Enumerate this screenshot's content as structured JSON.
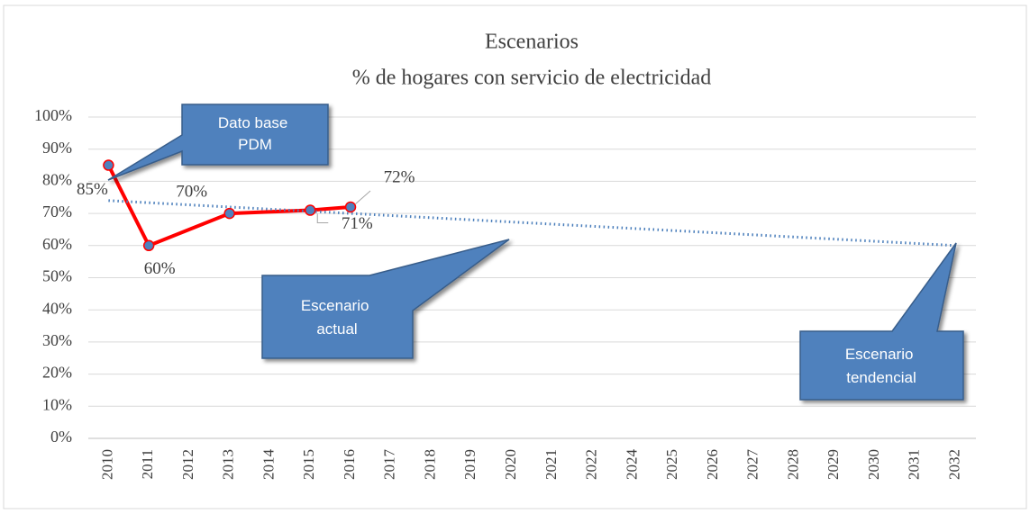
{
  "chart_data": {
    "type": "line",
    "title": "Escenarios",
    "subtitle": "% de hogares con servicio de electricidad",
    "categories": [
      "2010",
      "2011",
      "2012",
      "2013",
      "2014",
      "2015",
      "2016",
      "2017",
      "2018",
      "2019",
      "2020",
      "2021",
      "2022",
      "2024",
      "2025",
      "2026",
      "2027",
      "2028",
      "2029",
      "2030",
      "2031",
      "2032"
    ],
    "series": [
      {
        "color": "#ff0000",
        "marker_color": "#4f81bd",
        "style": "solid",
        "values": [
          85,
          60,
          null,
          70,
          null,
          71,
          72,
          null,
          null,
          null,
          null,
          null,
          null,
          null,
          null,
          null,
          null,
          null,
          null,
          null,
          null,
          null
        ],
        "value_labels": [
          "85%",
          "60%",
          null,
          "70%",
          null,
          "71%",
          "72%",
          null,
          null,
          null,
          null,
          null,
          null,
          null,
          null,
          null,
          null,
          null,
          null,
          null,
          null,
          null
        ]
      },
      {
        "color": "#4a7ebb",
        "style": "dotted",
        "values": [
          74,
          null,
          null,
          null,
          null,
          null,
          null,
          null,
          null,
          null,
          null,
          null,
          null,
          null,
          null,
          null,
          null,
          null,
          null,
          null,
          null,
          60
        ]
      }
    ],
    "span_gaps": true,
    "ylim": [
      0,
      100
    ],
    "yticks": [
      {
        "value": 0,
        "label": "0%"
      },
      {
        "value": 10,
        "label": "10%"
      },
      {
        "value": 20,
        "label": "20%"
      },
      {
        "value": 30,
        "label": "30%"
      },
      {
        "value": 40,
        "label": "40%"
      },
      {
        "value": 50,
        "label": "50%"
      },
      {
        "value": 60,
        "label": "60%"
      },
      {
        "value": 70,
        "label": "70%"
      },
      {
        "value": 80,
        "label": "80%"
      },
      {
        "value": 90,
        "label": "90%"
      },
      {
        "value": 100,
        "label": "100%"
      }
    ],
    "grid": true,
    "annotations": [
      [
        "Dato base",
        "PDM"
      ],
      [
        "Escenario",
        "actual"
      ],
      [
        "Escenario",
        "tendencial"
      ]
    ]
  }
}
